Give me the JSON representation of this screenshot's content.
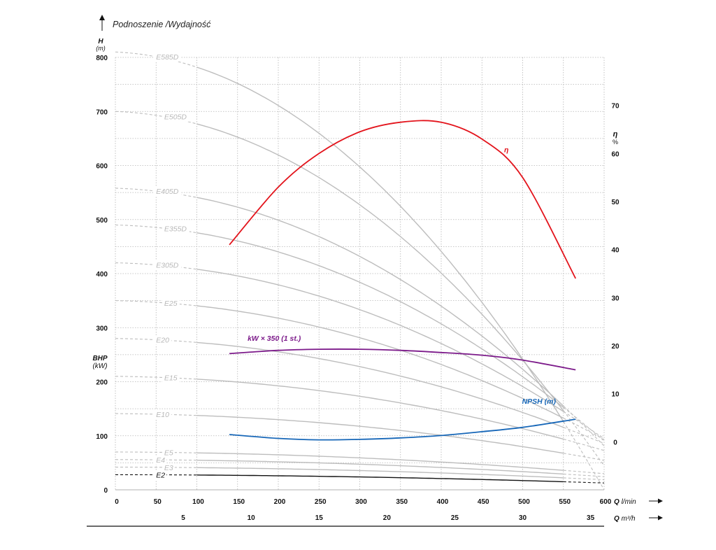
{
  "chart_data": {
    "type": "line",
    "title": "Podnoszenie /Wydajność",
    "y_left": {
      "label": "H",
      "unit": "(m)",
      "ticks": [
        0,
        100,
        200,
        300,
        400,
        500,
        600,
        700,
        800
      ],
      "range": [
        0,
        800
      ]
    },
    "y_left_secondary": {
      "label": "BHP",
      "unit": "(kW)"
    },
    "y_right": {
      "label": "η",
      "unit": "%",
      "ticks": [
        0,
        10,
        20,
        30,
        40,
        50,
        60,
        70
      ],
      "range": [
        -10,
        80
      ]
    },
    "x_primary": {
      "label": "Q",
      "unit": "l/min",
      "ticks": [
        0,
        50,
        100,
        150,
        200,
        250,
        300,
        350,
        400,
        450,
        500,
        550,
        600
      ],
      "range": [
        0,
        600
      ]
    },
    "x_secondary": {
      "label": "Q",
      "unit": "m³/h",
      "ticks": [
        5,
        10,
        15,
        20,
        25,
        30,
        35
      ]
    },
    "grid": true,
    "head_curves": [
      {
        "name": "E585D",
        "label": "E585D",
        "H0": 810
      },
      {
        "name": "E505D",
        "label": "E505D",
        "H0": 700
      },
      {
        "name": "E405D",
        "label": "E405D",
        "H0": 558
      },
      {
        "name": "E355D",
        "label": "E355D",
        "H0": 490
      },
      {
        "name": "E305D",
        "label": "E305D",
        "H0": 420
      },
      {
        "name": "E25",
        "label": "E25",
        "H0": 350
      },
      {
        "name": "E20",
        "label": "E20",
        "H0": 280
      },
      {
        "name": "E15",
        "label": "E15",
        "H0": 210
      },
      {
        "name": "E10",
        "label": "E10",
        "H0": 141
      },
      {
        "name": "E5",
        "label": "E5",
        "H0": 70
      },
      {
        "name": "E4",
        "label": "E4",
        "H0": 56
      },
      {
        "name": "E3",
        "label": "E3",
        "H0": 42
      },
      {
        "name": "E2",
        "label": "E2",
        "H0": 28
      }
    ],
    "series": [
      {
        "name": "η",
        "label": "η",
        "color": "#e3141c",
        "axis": "right",
        "x": [
          140,
          200,
          250,
          300,
          350,
          400,
          450,
          500,
          565
        ],
        "y": [
          41,
          53,
          60,
          64.5,
          66.5,
          66.5,
          63,
          55,
          34
        ]
      },
      {
        "name": "NPSH (m)",
        "label": "NPSH (m)",
        "color": "#1767b8",
        "axis": "right",
        "x": [
          140,
          200,
          250,
          300,
          350,
          400,
          450,
          500,
          565
        ],
        "y": [
          1.5,
          0.7,
          0.4,
          0.5,
          0.8,
          1.3,
          2.1,
          3.0,
          4.7
        ]
      },
      {
        "name": "kW × 350 (1 st.)",
        "label": "kW × 350 (1 st.)",
        "color": "#7c1a8a",
        "axis": "left",
        "x": [
          140,
          200,
          250,
          300,
          350,
          400,
          450,
          500,
          565
        ],
        "y": [
          252,
          258,
          260,
          260,
          258,
          254,
          249,
          240,
          222
        ]
      }
    ]
  }
}
